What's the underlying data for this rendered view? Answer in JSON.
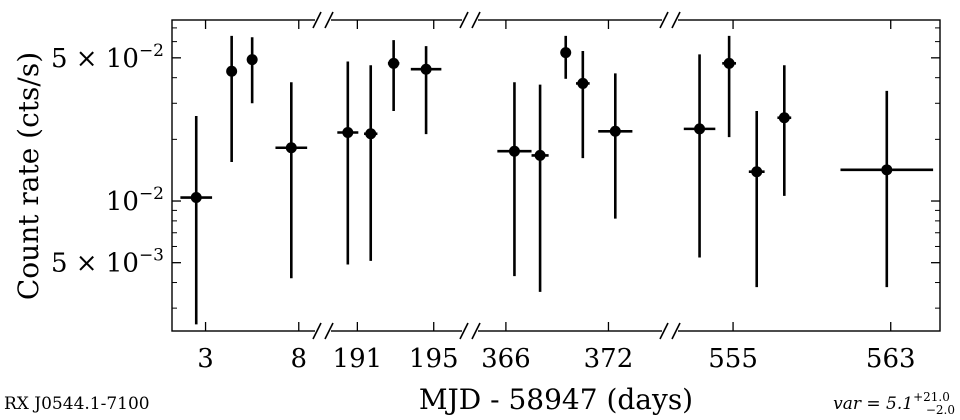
{
  "source_label": "RX J0544.1-7100",
  "variability": {
    "label": "var = 5.1",
    "plus": "+21.0",
    "minus": "−2.0"
  },
  "chart_data": {
    "type": "scatter",
    "title": "",
    "xlabel": "MJD - 58947 (days)",
    "ylabel": "Count rate (cts/s)",
    "y_scale": "log",
    "ylim": [
      0.00232,
      0.0765
    ],
    "y_ticks": [
      {
        "value": 0.05,
        "label": "5 × 10",
        "exp": "−2"
      },
      {
        "value": 0.01,
        "label": "10",
        "exp": "−2"
      },
      {
        "value": 0.005,
        "label": "5 × 10",
        "exp": "−3"
      }
    ],
    "broken_axis": true,
    "segments": [
      {
        "xlim": [
          1.2,
          9.3
        ],
        "ticks": [
          {
            "value": 3,
            "label": "3"
          },
          {
            "value": 8,
            "label": "8"
          }
        ],
        "points": [
          {
            "x": 2.5,
            "xerr": 0.85,
            "y": 0.0104,
            "ylo": 0.0025,
            "yhi": 0.026
          },
          {
            "x": 4.4,
            "xerr": 0.15,
            "y": 0.043,
            "ylo": 0.0155,
            "yhi": 0.064
          },
          {
            "x": 5.5,
            "xerr": 0.2,
            "y": 0.049,
            "ylo": 0.03,
            "yhi": 0.063
          },
          {
            "x": 7.6,
            "xerr": 0.85,
            "y": 0.0182,
            "ylo": 0.0042,
            "yhi": 0.038
          }
        ]
      },
      {
        "xlim": [
          189.2,
          196.9
        ],
        "ticks": [
          {
            "value": 191,
            "label": "191"
          },
          {
            "value": 195,
            "label": "195"
          }
        ],
        "points": [
          {
            "x": 190.5,
            "xerr": 0.55,
            "y": 0.0216,
            "ylo": 0.0049,
            "yhi": 0.048
          },
          {
            "x": 191.7,
            "xerr": 0.35,
            "y": 0.0213,
            "ylo": 0.0051,
            "yhi": 0.046
          },
          {
            "x": 192.9,
            "xerr": 0.3,
            "y": 0.047,
            "ylo": 0.0275,
            "yhi": 0.061
          },
          {
            "x": 194.6,
            "xerr": 0.8,
            "y": 0.044,
            "ylo": 0.0212,
            "yhi": 0.057
          }
        ]
      },
      {
        "xlim": [
          363.9,
          375.6
        ],
        "ticks": [
          {
            "value": 366,
            "label": "366"
          },
          {
            "value": 372,
            "label": "372"
          }
        ],
        "points": [
          {
            "x": 366.5,
            "xerr": 1.0,
            "y": 0.0175,
            "ylo": 0.0043,
            "yhi": 0.038
          },
          {
            "x": 368.0,
            "xerr": 0.5,
            "y": 0.0167,
            "ylo": 0.0036,
            "yhi": 0.037
          },
          {
            "x": 369.5,
            "xerr": 0.3,
            "y": 0.053,
            "ylo": 0.0395,
            "yhi": 0.064
          },
          {
            "x": 370.5,
            "xerr": 0.4,
            "y": 0.0375,
            "ylo": 0.0162,
            "yhi": 0.054
          },
          {
            "x": 372.4,
            "xerr": 1.0,
            "y": 0.0219,
            "ylo": 0.0082,
            "yhi": 0.042
          }
        ]
      },
      {
        "xlim": [
          551.8,
          565.5
        ],
        "ticks": [
          {
            "value": 555,
            "label": "555"
          },
          {
            "value": 563,
            "label": "563"
          }
        ],
        "points": [
          {
            "x": 553.3,
            "xerr": 0.8,
            "y": 0.0225,
            "ylo": 0.0053,
            "yhi": 0.052
          },
          {
            "x": 554.8,
            "xerr": 0.35,
            "y": 0.047,
            "ylo": 0.0205,
            "yhi": 0.064
          },
          {
            "x": 556.2,
            "xerr": 0.4,
            "y": 0.0139,
            "ylo": 0.0038,
            "yhi": 0.0275
          },
          {
            "x": 557.6,
            "xerr": 0.35,
            "y": 0.0255,
            "ylo": 0.0106,
            "yhi": 0.046
          },
          {
            "x": 562.8,
            "xerr": 2.35,
            "y": 0.0142,
            "ylo": 0.0038,
            "yhi": 0.0345
          }
        ]
      }
    ]
  }
}
